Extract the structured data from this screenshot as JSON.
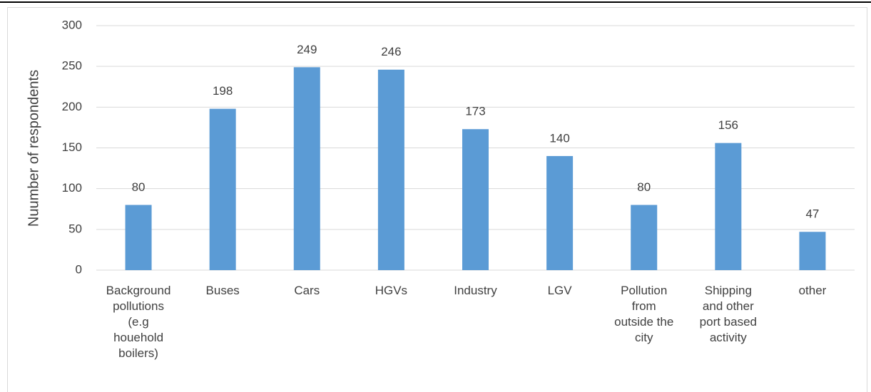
{
  "chart_data": {
    "type": "bar",
    "y_label": "Nuumber of respondents",
    "categories": [
      "Background\npollutions\n(e.g\nhouehold\nboilers)",
      "Buses",
      "Cars",
      "HGVs",
      "Industry",
      "LGV",
      "Pollution\nfrom\noutside the\ncity",
      "Shipping\nand other\nport based\nactivity",
      "other"
    ],
    "values": [
      80,
      198,
      249,
      246,
      173,
      140,
      80,
      156,
      47
    ],
    "color": "#5b9bd5",
    "ylim": [
      0,
      300
    ],
    "yticks": [
      0,
      50,
      100,
      150,
      200,
      250,
      300
    ],
    "grid": true
  }
}
